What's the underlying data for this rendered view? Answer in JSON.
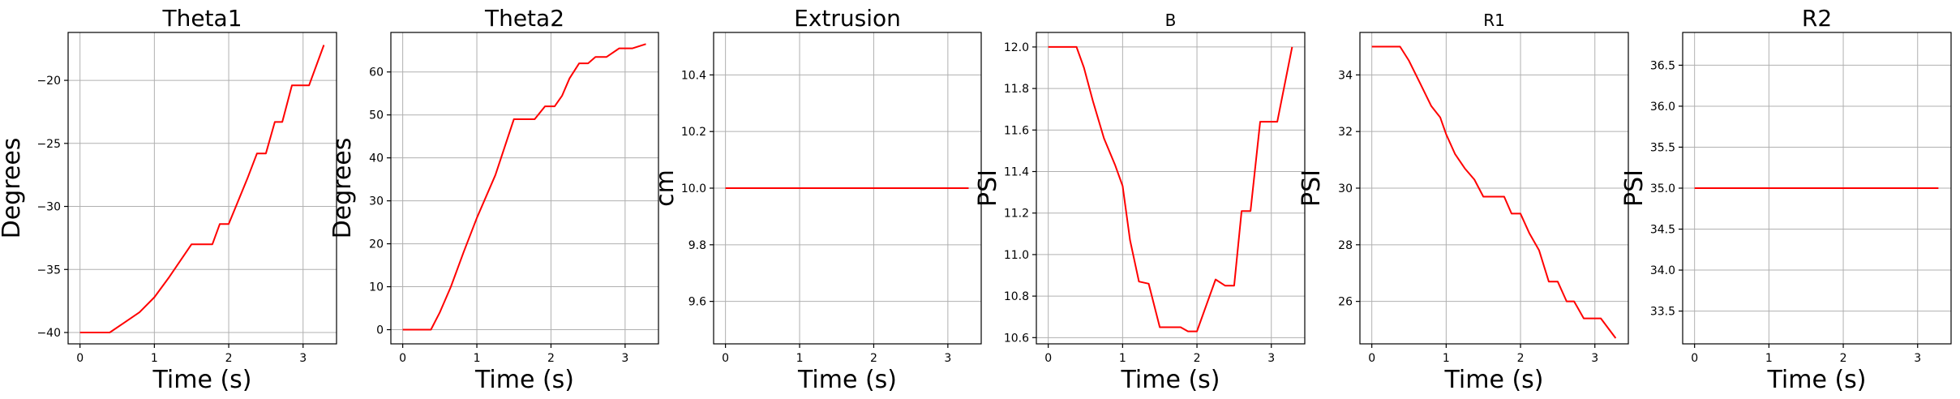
{
  "chart_data": [
    {
      "type": "line",
      "title": "Theta1",
      "xlabel": "Time (s)",
      "ylabel": "Degrees",
      "xlim": [
        -0.16,
        3.45
      ],
      "ylim": [
        -40.9,
        -16.2
      ],
      "xticks": [
        0,
        1,
        2,
        3
      ],
      "yticks": [
        -40,
        -35,
        -30,
        -25,
        -20
      ],
      "grid": true,
      "color": "#ff0000",
      "x": [
        0,
        0.4,
        0.6,
        0.8,
        1.0,
        1.2,
        1.5,
        1.78,
        1.88,
        2.0,
        2.25,
        2.38,
        2.5,
        2.62,
        2.72,
        2.85,
        3.08,
        3.28
      ],
      "y": [
        -40,
        -40,
        -39.2,
        -38.4,
        -37.2,
        -35.6,
        -33,
        -33,
        -31.4,
        -31.4,
        -27.8,
        -25.8,
        -25.8,
        -23.3,
        -23.3,
        -20.4,
        -20.4,
        -17.2
      ]
    },
    {
      "type": "line",
      "title": "Theta2",
      "xlabel": "Time (s)",
      "ylabel": "Degrees",
      "xlim": [
        -0.16,
        3.45
      ],
      "ylim": [
        -3.3,
        69.2
      ],
      "xticks": [
        0,
        1,
        2,
        3
      ],
      "yticks": [
        0,
        10,
        20,
        30,
        40,
        50,
        60
      ],
      "grid": true,
      "color": "#ff0000",
      "x": [
        0,
        0.38,
        0.5,
        0.65,
        0.82,
        1.0,
        1.25,
        1.5,
        1.78,
        1.92,
        2.05,
        2.15,
        2.25,
        2.38,
        2.5,
        2.6,
        2.75,
        2.92,
        3.1,
        3.28
      ],
      "y": [
        0,
        0,
        4,
        10,
        18,
        26,
        36,
        49,
        49,
        52,
        52,
        54.5,
        58.5,
        62,
        62,
        63.5,
        63.5,
        65.5,
        65.5,
        66.5
      ]
    },
    {
      "type": "line",
      "title": "Extrusion",
      "xlabel": "Time (s)",
      "ylabel": "cm",
      "xlim": [
        -0.16,
        3.45
      ],
      "ylim": [
        9.45,
        10.55
      ],
      "xticks": [
        0,
        1,
        2,
        3
      ],
      "yticks": [
        9.6,
        9.8,
        10.0,
        10.2,
        10.4
      ],
      "ytick_labels": [
        "9.6",
        "9.8",
        "10.0",
        "10.2",
        "10.4"
      ],
      "grid": true,
      "color": "#ff0000",
      "x": [
        0,
        3.28
      ],
      "y": [
        10.0,
        10.0
      ]
    },
    {
      "type": "line",
      "title": "B",
      "xlabel": "Time (s)",
      "ylabel": "PSI",
      "xlim": [
        -0.16,
        3.45
      ],
      "ylim": [
        10.57,
        12.07
      ],
      "xticks": [
        0,
        1,
        2,
        3
      ],
      "yticks": [
        10.6,
        10.8,
        11.0,
        11.2,
        11.4,
        11.6,
        11.8,
        12.0
      ],
      "ytick_labels": [
        "10.6",
        "10.8",
        "11.0",
        "11.2",
        "11.4",
        "11.6",
        "11.8",
        "12.0"
      ],
      "grid": true,
      "color": "#ff0000",
      "x": [
        0,
        0.38,
        0.48,
        0.6,
        0.75,
        0.9,
        1.0,
        1.1,
        1.22,
        1.35,
        1.5,
        1.78,
        1.88,
        2.0,
        2.1,
        2.25,
        2.38,
        2.5,
        2.6,
        2.72,
        2.85,
        3.08,
        3.28
      ],
      "y": [
        12.0,
        12.0,
        11.9,
        11.74,
        11.56,
        11.43,
        11.33,
        11.07,
        10.87,
        10.86,
        10.65,
        10.65,
        10.63,
        10.63,
        10.73,
        10.88,
        10.85,
        10.85,
        11.21,
        11.21,
        11.64,
        11.64,
        12.0
      ]
    },
    {
      "type": "line",
      "title": "R1",
      "xlabel": "Time (s)",
      "ylabel": "PSI",
      "xlim": [
        -0.16,
        3.45
      ],
      "ylim": [
        24.5,
        35.5
      ],
      "xticks": [
        0,
        1,
        2,
        3
      ],
      "yticks": [
        26,
        28,
        30,
        32,
        34
      ],
      "grid": true,
      "color": "#ff0000",
      "x": [
        0,
        0.38,
        0.5,
        0.65,
        0.8,
        0.92,
        1.0,
        1.12,
        1.25,
        1.38,
        1.5,
        1.78,
        1.88,
        2.0,
        2.12,
        2.25,
        2.38,
        2.5,
        2.62,
        2.72,
        2.85,
        3.08,
        3.28
      ],
      "y": [
        35,
        35,
        34.5,
        33.7,
        32.9,
        32.5,
        31.9,
        31.2,
        30.7,
        30.3,
        29.7,
        29.7,
        29.1,
        29.1,
        28.4,
        27.8,
        26.7,
        26.7,
        26,
        26,
        25.4,
        25.4,
        24.7
      ]
    },
    {
      "type": "line",
      "title": "R2",
      "xlabel": "Time (s)",
      "ylabel": "PSI",
      "xlim": [
        -0.16,
        3.45
      ],
      "ylim": [
        33.1,
        36.9
      ],
      "xticks": [
        0,
        1,
        2,
        3
      ],
      "yticks": [
        33.5,
        34.0,
        34.5,
        35.0,
        35.5,
        36.0,
        36.5
      ],
      "ytick_labels": [
        "33.5",
        "34.0",
        "34.5",
        "35.0",
        "35.5",
        "36.0",
        "36.5"
      ],
      "grid": true,
      "color": "#ff0000",
      "x": [
        0,
        3.28
      ],
      "y": [
        35.0,
        35.0
      ]
    }
  ]
}
